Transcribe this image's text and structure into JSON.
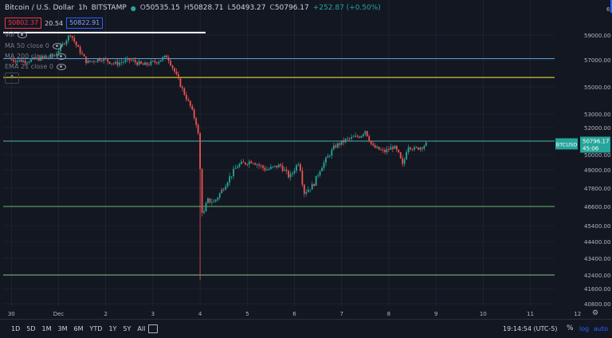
{
  "header": {
    "symbol": "Bitcoin / U.S. Dollar",
    "interval": "1h",
    "exchange": "BITSTAMP",
    "open_label": "O",
    "open": "50535.15",
    "high_label": "H",
    "high": "50828.71",
    "low_label": "L",
    "low": "50493.27",
    "close_label": "C",
    "close": "50796.17",
    "change": "+252.87 (+0.50%)"
  },
  "trade": {
    "bid": "50802.37",
    "spread": "20.54",
    "ask": "50822.91"
  },
  "indicators": [
    {
      "label": "Vol"
    },
    {
      "label": "MA 50 close 0"
    },
    {
      "label": "MA 200 close 0"
    },
    {
      "label": "EMA 21 close 0"
    }
  ],
  "toolbar": {
    "ranges": [
      "1D",
      "5D",
      "1M",
      "3M",
      "6M",
      "YTD",
      "1Y",
      "5Y",
      "All"
    ],
    "clock": "19:14:54 (UTC-5)",
    "percent": "%",
    "log": "log",
    "auto": "auto"
  },
  "colors": {
    "background": "#131722",
    "up": "#26a69a",
    "down": "#ef5350",
    "blue_zone": "#1f3355",
    "teal_zone": "#0f3a3a",
    "green_zone": "#1b3a2a",
    "yellow_line": "#ffeb3b"
  },
  "chart_data": {
    "type": "candlestick",
    "symbol": "BTCUSD",
    "ylim": [
      40800,
      60200
    ],
    "y_ticks": [
      40800,
      41600,
      42400,
      43400,
      44400,
      45400,
      46600,
      47800,
      49000,
      50000,
      51000,
      52000,
      53000,
      55000,
      57000,
      59000
    ],
    "y_tick_labels": [
      "40800.00",
      "41600.00",
      "42400.00",
      "43400.00",
      "44400.00",
      "45400.00",
      "46600.00",
      "47800.00",
      "49000.00",
      "50000.00",
      "51000.00",
      "52000.00",
      "53000.00",
      "55000.00",
      "57000.00",
      "59000.00"
    ],
    "y_top_label": "6",
    "x_range_days": [
      -1,
      12
    ],
    "x_ticks": [
      {
        "day": -1,
        "label": "30"
      },
      {
        "day": 0,
        "label": "Dec"
      },
      {
        "day": 1,
        "label": "2"
      },
      {
        "day": 2,
        "label": "3"
      },
      {
        "day": 3,
        "label": "4"
      },
      {
        "day": 4,
        "label": "5"
      },
      {
        "day": 5,
        "label": "6"
      },
      {
        "day": 6,
        "label": "7"
      },
      {
        "day": 7,
        "label": "8"
      },
      {
        "day": 8,
        "label": "9"
      },
      {
        "day": 9,
        "label": "10"
      },
      {
        "day": 10,
        "label": "11"
      },
      {
        "day": 11,
        "label": "12"
      }
    ],
    "horizontal_levels": [
      59200,
      57100,
      55700,
      51000,
      46600,
      42400
    ],
    "zones": [
      {
        "from": 57100,
        "to": 51000,
        "color": "#1f3355"
      },
      {
        "from": 51000,
        "to": 46600,
        "color": "#0f3a3a"
      },
      {
        "from": 46600,
        "to": 40800,
        "color": "#1b3a2a"
      }
    ],
    "last_price": {
      "symbol": "BTCUSD",
      "value": "50796.17",
      "countdown": "45:06",
      "price": 50796.17
    },
    "price_path": [
      [
        -1.0,
        57000
      ],
      [
        -0.7,
        56900
      ],
      [
        -0.4,
        57100
      ],
      [
        -0.1,
        57300
      ],
      [
        0.1,
        58300
      ],
      [
        0.25,
        59100
      ],
      [
        0.4,
        58000
      ],
      [
        0.6,
        56800
      ],
      [
        0.9,
        57100
      ],
      [
        1.2,
        56700
      ],
      [
        1.5,
        57000
      ],
      [
        1.8,
        56600
      ],
      [
        2.1,
        56900
      ],
      [
        2.3,
        57300
      ],
      [
        2.45,
        56200
      ],
      [
        2.6,
        55000
      ],
      [
        2.8,
        53500
      ],
      [
        2.95,
        52000
      ],
      [
        3.0,
        49000
      ],
      [
        3.05,
        45800
      ],
      [
        3.15,
        47000
      ],
      [
        3.3,
        46900
      ],
      [
        3.45,
        47600
      ],
      [
        3.6,
        48400
      ],
      [
        3.8,
        49300
      ],
      [
        4.1,
        49600
      ],
      [
        4.4,
        49000
      ],
      [
        4.7,
        49300
      ],
      [
        4.9,
        48500
      ],
      [
        5.1,
        49600
      ],
      [
        5.2,
        47500
      ],
      [
        5.4,
        48000
      ],
      [
        5.55,
        49100
      ],
      [
        5.7,
        49800
      ],
      [
        5.85,
        50600
      ],
      [
        6.1,
        51100
      ],
      [
        6.4,
        51400
      ],
      [
        6.5,
        51800
      ],
      [
        6.65,
        50600
      ],
      [
        6.9,
        50200
      ],
      [
        7.1,
        50600
      ],
      [
        7.2,
        50100
      ],
      [
        7.3,
        49200
      ],
      [
        7.4,
        50700
      ],
      [
        7.55,
        50400
      ],
      [
        7.7,
        50600
      ],
      [
        7.8,
        50796
      ]
    ]
  }
}
